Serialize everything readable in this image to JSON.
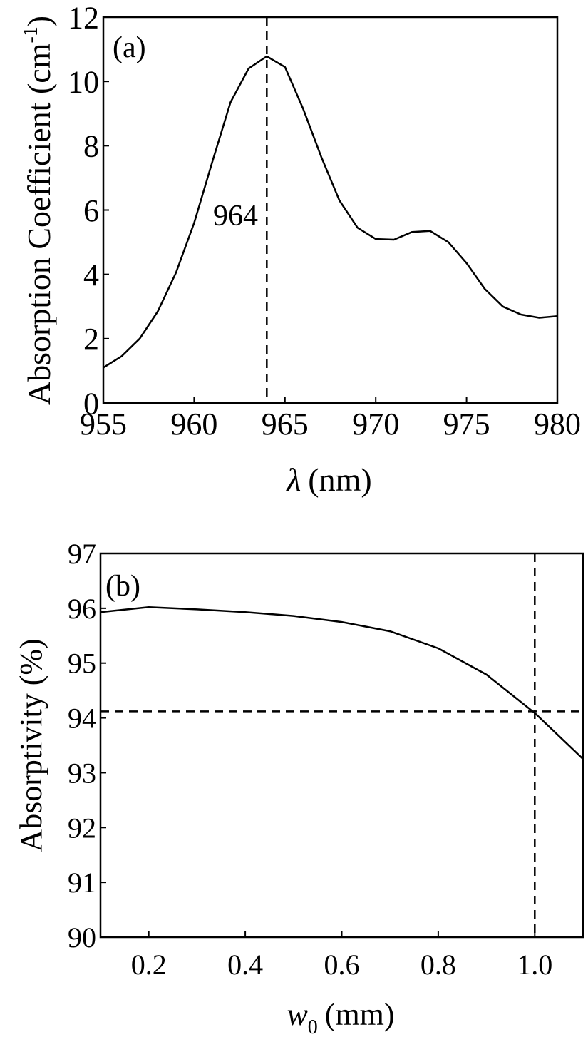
{
  "chart_data": [
    {
      "panel_label": "(a)",
      "type": "line",
      "xlabel_symbol": "λ",
      "xlabel_unit": "(nm)",
      "ylabel": "Absorption Coefficient (cm",
      "ylabel_sup": "-1",
      "ylabel_close": ")",
      "xlim": [
        955,
        980
      ],
      "ylim": [
        0,
        12
      ],
      "xticks": [
        "955",
        "960",
        "965",
        "970",
        "975",
        "980"
      ],
      "xtick_values": [
        955,
        960,
        965,
        970,
        975,
        980
      ],
      "yticks": [
        "0",
        "2",
        "4",
        "6",
        "8",
        "10",
        "12"
      ],
      "ytick_values": [
        0,
        2,
        4,
        6,
        8,
        10,
        12
      ],
      "grid": false,
      "series": [
        {
          "x": [
            955,
            956,
            957,
            958,
            959,
            960,
            961,
            962,
            963,
            964,
            965,
            966,
            967,
            968,
            969,
            970,
            971,
            972,
            973,
            974,
            975,
            976,
            977,
            978,
            979,
            980
          ],
          "y": [
            1.1,
            1.45,
            2.0,
            2.85,
            4.05,
            5.6,
            7.5,
            9.35,
            10.4,
            10.78,
            10.45,
            9.15,
            7.65,
            6.3,
            5.45,
            5.1,
            5.08,
            5.32,
            5.35,
            5.0,
            4.35,
            3.55,
            3.0,
            2.75,
            2.65,
            2.7
          ]
        }
      ],
      "annotation_line_x": 964,
      "annotation_text": "964"
    },
    {
      "panel_label": "(b)",
      "type": "line",
      "xlabel_symbol": "w",
      "xlabel_sub": "0",
      "xlabel_unit": "(mm)",
      "ylabel": "Absorptivity (%)",
      "xlim": [
        0.1,
        1.1
      ],
      "ylim": [
        90,
        97
      ],
      "xticks": [
        "0.2",
        "0.4",
        "0.6",
        "0.8",
        "1.0"
      ],
      "xtick_values": [
        0.2,
        0.4,
        0.6,
        0.8,
        1.0
      ],
      "yticks": [
        "90",
        "91",
        "92",
        "93",
        "94",
        "95",
        "96",
        "97"
      ],
      "ytick_values": [
        90,
        91,
        92,
        93,
        94,
        95,
        96,
        97
      ],
      "grid": false,
      "series": [
        {
          "x": [
            0.1,
            0.2,
            0.3,
            0.4,
            0.5,
            0.6,
            0.7,
            0.8,
            0.9,
            1.0,
            1.1
          ],
          "y": [
            95.93,
            96.02,
            95.98,
            95.93,
            95.86,
            95.75,
            95.58,
            95.27,
            94.79,
            94.09,
            93.25
          ]
        }
      ],
      "annotation_line_x": 1.0,
      "annotation_line_y": 94.12
    }
  ]
}
